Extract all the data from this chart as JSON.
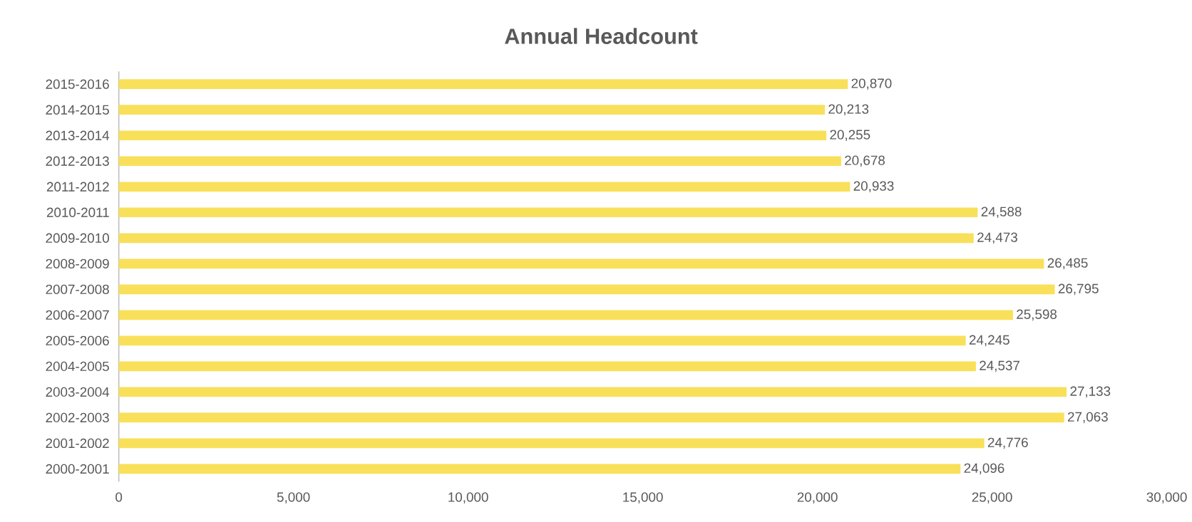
{
  "chart_data": {
    "type": "bar",
    "orientation": "horizontal",
    "title": "Annual Headcount",
    "categories": [
      "2015-2016",
      "2014-2015",
      "2013-2014",
      "2012-2013",
      "2011-2012",
      "2010-2011",
      "2009-2010",
      "2008-2009",
      "2007-2008",
      "2006-2007",
      "2005-2006",
      "2004-2005",
      "2003-2004",
      "2002-2003",
      "2001-2002",
      "2000-2001"
    ],
    "values": [
      20870,
      20213,
      20255,
      20678,
      20933,
      24588,
      24473,
      26485,
      26795,
      25598,
      24245,
      24537,
      27133,
      27063,
      24776,
      24096
    ],
    "value_labels": [
      "20,870",
      "20,213",
      "20,255",
      "20,678",
      "20,933",
      "24,588",
      "24,473",
      "26,485",
      "26,795",
      "25,598",
      "24,245",
      "24,537",
      "27,133",
      "27,063",
      "24,776",
      "24,096"
    ],
    "color": "#f9e05a",
    "xlim": [
      0,
      30000
    ],
    "xticks": [
      0,
      {
        "value": 5000,
        "label": "5,000"
      },
      {
        "value": 10000,
        "label": "10,000"
      },
      {
        "value": 15000,
        "label": "15,000"
      },
      {
        "value": 20000,
        "label": "20,000"
      },
      {
        "value": 25000,
        "label": "25,000"
      },
      {
        "value": 30000,
        "label": "30,000"
      }
    ],
    "grid": false
  }
}
